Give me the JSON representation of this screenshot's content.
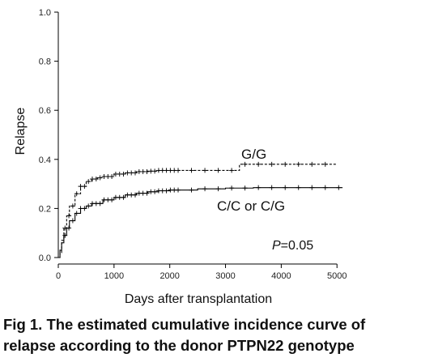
{
  "chart_data": {
    "type": "line",
    "xlabel": "Days after transplantation",
    "ylabel": "Relapse",
    "xlim": [
      0,
      5200
    ],
    "ylim": [
      0,
      1.0
    ],
    "x_ticks": [
      0,
      1000,
      2000,
      3000,
      4000,
      5000
    ],
    "y_ticks": [
      "0.0",
      "0.2",
      "0.4",
      "0.6",
      "0.8",
      "1.0"
    ],
    "series": [
      {
        "name": "G/G",
        "style": "dashed",
        "x": [
          0,
          30,
          60,
          100,
          150,
          200,
          300,
          400,
          500,
          600,
          700,
          800,
          1000,
          1200,
          1400,
          1600,
          1800,
          2000,
          2500,
          3000,
          3200,
          3250,
          4000,
          5000
        ],
        "y": [
          0,
          0.02,
          0.07,
          0.12,
          0.17,
          0.21,
          0.26,
          0.29,
          0.31,
          0.32,
          0.325,
          0.33,
          0.34,
          0.345,
          0.35,
          0.352,
          0.355,
          0.355,
          0.355,
          0.355,
          0.355,
          0.38,
          0.38,
          0.38
        ]
      },
      {
        "name": "C/C or C/G",
        "style": "solid",
        "x": [
          0,
          30,
          60,
          100,
          150,
          200,
          300,
          400,
          500,
          600,
          800,
          1000,
          1200,
          1400,
          1600,
          1800,
          2000,
          2500,
          3000,
          3500,
          4000,
          4500,
          5100
        ],
        "y": [
          0,
          0.03,
          0.06,
          0.09,
          0.12,
          0.15,
          0.18,
          0.2,
          0.21,
          0.22,
          0.235,
          0.245,
          0.255,
          0.262,
          0.268,
          0.272,
          0.275,
          0.28,
          0.283,
          0.285,
          0.285,
          0.285,
          0.285
        ]
      }
    ],
    "annotations": [
      {
        "text": "G/G"
      },
      {
        "text": "C/C or C/G"
      }
    ],
    "pvalue": {
      "italic": "P",
      "rest": "=0.05"
    }
  },
  "caption": {
    "line1": "Fig 1. The estimated cumulative incidence curve of",
    "line2": "relapse according to the donor PTPN22 genotype"
  }
}
